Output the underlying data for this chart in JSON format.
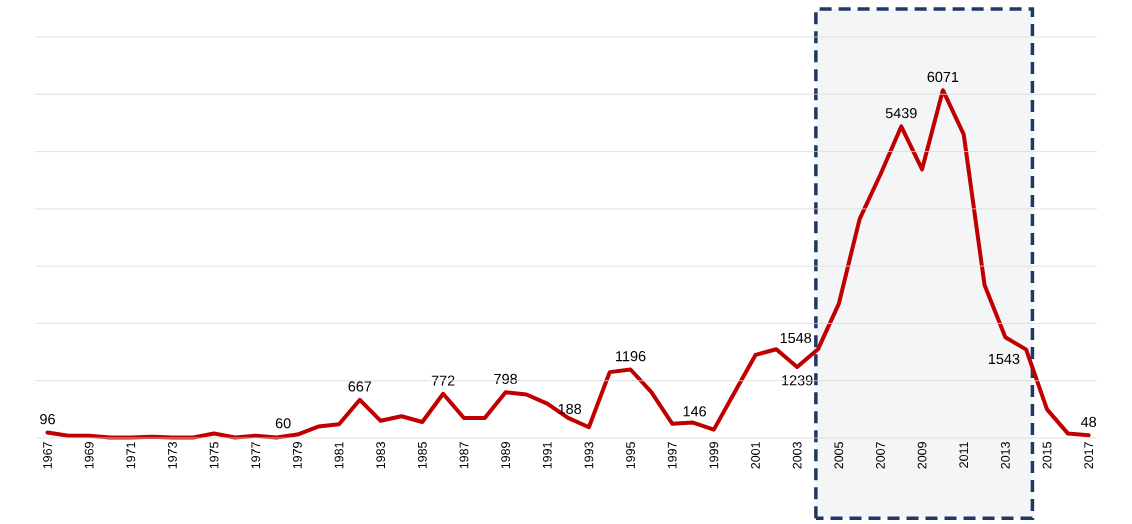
{
  "chart_data": {
    "type": "line",
    "x": [
      1967,
      1968,
      1969,
      1970,
      1971,
      1972,
      1973,
      1974,
      1975,
      1976,
      1977,
      1978,
      1979,
      1980,
      1981,
      1982,
      1983,
      1984,
      1985,
      1986,
      1987,
      1988,
      1989,
      1990,
      1991,
      1992,
      1993,
      1994,
      1995,
      1996,
      1997,
      1998,
      1999,
      2000,
      2001,
      2002,
      2003,
      2004,
      2005,
      2006,
      2007,
      2008,
      2009,
      2010,
      2011,
      2012,
      2013,
      2014,
      2015,
      2016,
      2017
    ],
    "series": [
      {
        "color": "#c00000",
        "values": [
          96,
          40,
          40,
          10,
          10,
          20,
          10,
          10,
          80,
          10,
          40,
          10,
          60,
          200,
          240,
          667,
          300,
          380,
          280,
          772,
          350,
          350,
          798,
          760,
          600,
          350,
          188,
          1150,
          1196,
          800,
          250,
          270,
          146,
          800,
          1450,
          1550,
          1239,
          1548,
          2340,
          3820,
          4600,
          5439,
          4690,
          6071,
          5300,
          2670,
          1760,
          1543,
          500,
          80,
          48
        ],
        "value_labels": [
          "96",
          null,
          null,
          null,
          null,
          null,
          null,
          null,
          null,
          null,
          null,
          null,
          "60",
          null,
          null,
          "667",
          null,
          null,
          null,
          "772",
          null,
          null,
          "798",
          null,
          null,
          null,
          "188",
          null,
          "1196",
          null,
          null,
          null,
          "146",
          null,
          null,
          null,
          "1239",
          "1548",
          null,
          null,
          null,
          "5439",
          null,
          "6071",
          null,
          null,
          null,
          "1543",
          null,
          null,
          "48"
        ]
      }
    ],
    "xlim": [
      1966.4,
      2017.4
    ],
    "xticks": [
      1967,
      1969,
      1971,
      1973,
      1975,
      1977,
      1979,
      1981,
      1983,
      1985,
      1987,
      1989,
      1991,
      1993,
      1995,
      1997,
      1999,
      2001,
      2003,
      2005,
      2007,
      2009,
      2011,
      2013,
      2015,
      2017
    ],
    "ylim": [
      0,
      7000
    ],
    "yticks": [
      {
        "value": 0,
        "label": null
      },
      {
        "value": 1000,
        "label": null
      },
      {
        "value": 2000,
        "label": null
      },
      {
        "value": 3000,
        "label": null
      },
      {
        "value": 4000,
        "label": null
      },
      {
        "value": 5000,
        "label": null
      },
      {
        "value": 6000,
        "label": null
      },
      {
        "value": 7000,
        "label": null
      }
    ],
    "tick_labels": "x",
    "grid": "y",
    "marker": "none",
    "line_style": "solid",
    "bands": [
      {
        "axis": "x",
        "from": 2003.9,
        "to": 2014.3,
        "color": "#1f3864"
      }
    ]
  }
}
